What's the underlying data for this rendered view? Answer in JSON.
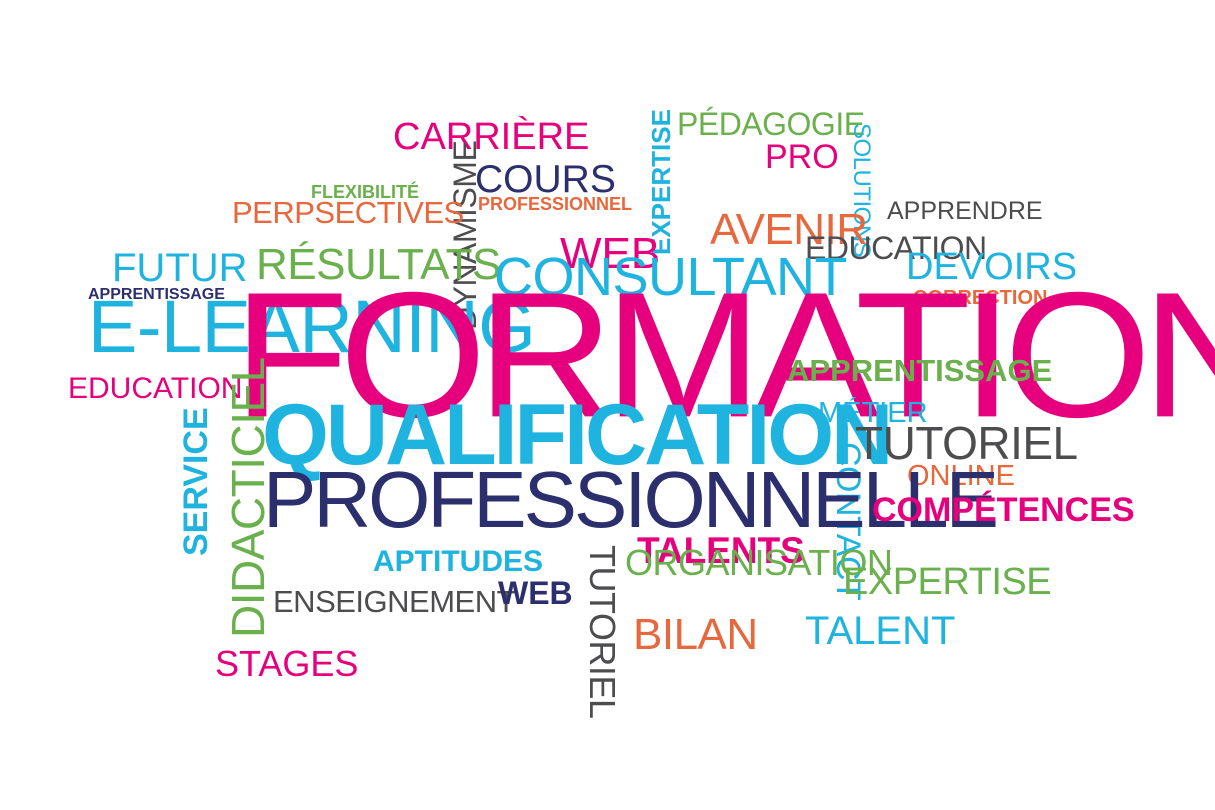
{
  "colors": {
    "magenta": "#e6007e",
    "cyan": "#1fb3e0",
    "navy": "#2b2f6e",
    "green": "#6ab04c",
    "orange": "#e6683c",
    "gray": "#4d4d4f"
  },
  "words": [
    {
      "id": "carriere",
      "text": "CARRIÈRE",
      "color": "magenta"
    },
    {
      "id": "pedagogie",
      "text": "PÉDAGOGIE",
      "color": "green"
    },
    {
      "id": "expertise-vertical",
      "text": "EXPERTISE",
      "color": "cyan"
    },
    {
      "id": "pro",
      "text": "PRO",
      "color": "magenta"
    },
    {
      "id": "solutions",
      "text": "SOLUTIONS",
      "color": "cyan"
    },
    {
      "id": "flexibilite",
      "text": "FLEXIBILITÉ",
      "color": "green"
    },
    {
      "id": "dynamisme",
      "text": "DYNAMISME",
      "color": "gray"
    },
    {
      "id": "cours",
      "text": "COURS",
      "color": "navy"
    },
    {
      "id": "professionnel",
      "text": "PROFESSIONNEL",
      "color": "orange"
    },
    {
      "id": "perpsectives",
      "text": "PERPSECTIVES",
      "color": "orange"
    },
    {
      "id": "apprendre",
      "text": "APPRENDRE",
      "color": "gray"
    },
    {
      "id": "web-top",
      "text": "WEB",
      "color": "magenta"
    },
    {
      "id": "avenir",
      "text": "AVENIR",
      "color": "orange"
    },
    {
      "id": "futur",
      "text": "FUTUR",
      "color": "cyan"
    },
    {
      "id": "resultats",
      "text": "RÉSULTATS",
      "color": "green"
    },
    {
      "id": "education-right",
      "text": "EDUCATION",
      "color": "gray"
    },
    {
      "id": "devoirs",
      "text": "DEVOIRS",
      "color": "cyan"
    },
    {
      "id": "consultant",
      "text": "CONSULTANT",
      "color": "cyan"
    },
    {
      "id": "apprentissage-small",
      "text": "APPRENTISSAGE",
      "color": "navy"
    },
    {
      "id": "correction",
      "text": "CORRECTION",
      "color": "orange"
    },
    {
      "id": "e-learning",
      "text": "E-LEARNING",
      "color": "cyan"
    },
    {
      "id": "formation",
      "text": "FORMATION",
      "color": "magenta"
    },
    {
      "id": "education-left",
      "text": "EDUCATION",
      "color": "magenta"
    },
    {
      "id": "apprentissage-green",
      "text": "APPRENTISSAGE",
      "color": "green"
    },
    {
      "id": "metier",
      "text": "MÉTIER",
      "color": "cyan"
    },
    {
      "id": "didacticiel",
      "text": "DIDACTICIEL",
      "color": "green"
    },
    {
      "id": "service",
      "text": "SERVICE",
      "color": "cyan"
    },
    {
      "id": "qualification",
      "text": "QUALIFICATION",
      "color": "cyan"
    },
    {
      "id": "tutoriel-right",
      "text": "TUTORIEL",
      "color": "gray"
    },
    {
      "id": "contact",
      "text": "CONTACT",
      "color": "cyan"
    },
    {
      "id": "online",
      "text": "ONLINE",
      "color": "orange"
    },
    {
      "id": "professionnelle",
      "text": "PROFESSIONNELLE",
      "color": "navy"
    },
    {
      "id": "competences",
      "text": "COMPÉTENCES",
      "color": "magenta"
    },
    {
      "id": "talents",
      "text": "TALENTS",
      "color": "magenta"
    },
    {
      "id": "aptitudes",
      "text": "APTITUDES",
      "color": "cyan"
    },
    {
      "id": "tutoriel-vertical",
      "text": "TUTORIEL",
      "color": "gray"
    },
    {
      "id": "organisation",
      "text": "ORGANISATION",
      "color": "green"
    },
    {
      "id": "enseignement",
      "text": "ENSEIGNEMENT",
      "color": "gray"
    },
    {
      "id": "web-bottom",
      "text": "WEB",
      "color": "navy"
    },
    {
      "id": "expertise",
      "text": "EXPERTISE",
      "color": "green"
    },
    {
      "id": "bilan",
      "text": "BILAN",
      "color": "orange"
    },
    {
      "id": "talent",
      "text": "TALENT",
      "color": "cyan"
    },
    {
      "id": "stages",
      "text": "STAGES",
      "color": "magenta"
    }
  ]
}
